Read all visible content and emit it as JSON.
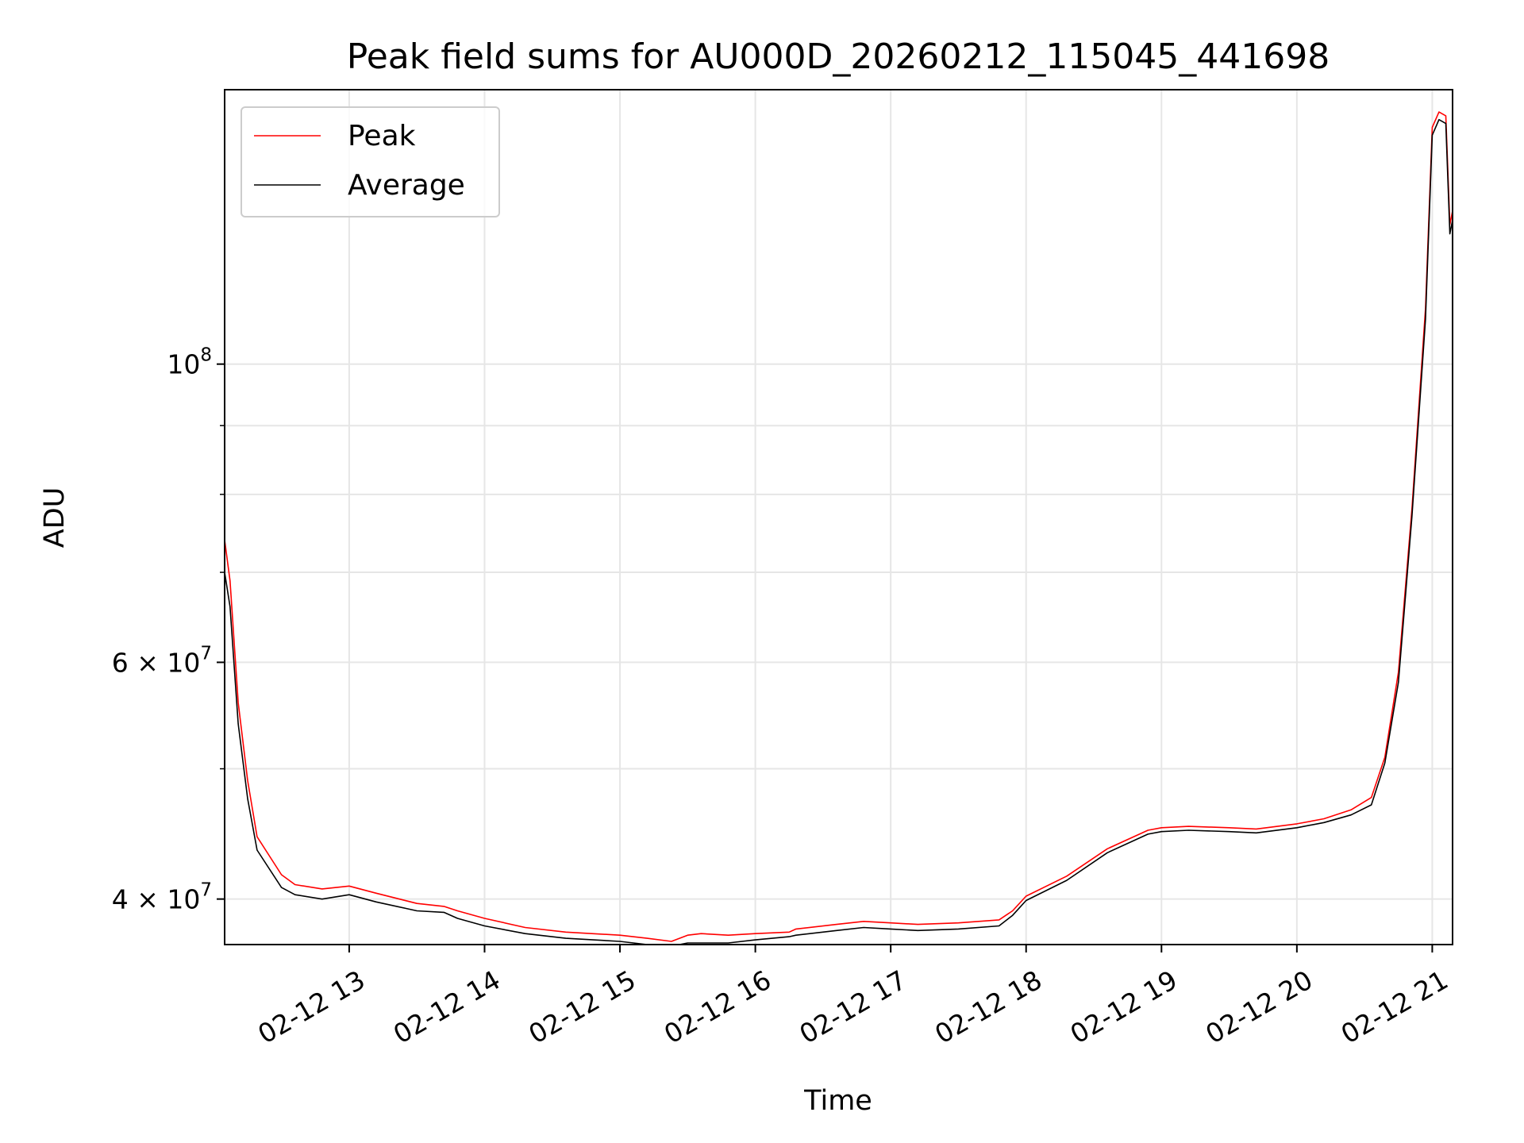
{
  "chart_data": {
    "type": "line",
    "title": "Peak field sums for AU000D_20260212_115045_441698",
    "xlabel": "Time",
    "ylabel": "ADU",
    "y_scale": "log",
    "x_unit": "hours (Feb 12)",
    "xlim": [
      12.08,
      21.15
    ],
    "ylim": [
      37000000,
      160000000
    ],
    "x_ticks": [
      {
        "value": 13,
        "label": "02-12 13"
      },
      {
        "value": 14,
        "label": "02-12 14"
      },
      {
        "value": 15,
        "label": "02-12 15"
      },
      {
        "value": 16,
        "label": "02-12 16"
      },
      {
        "value": 17,
        "label": "02-12 17"
      },
      {
        "value": 18,
        "label": "02-12 18"
      },
      {
        "value": 19,
        "label": "02-12 19"
      },
      {
        "value": 20,
        "label": "02-12 20"
      },
      {
        "value": 21,
        "label": "02-12 21"
      }
    ],
    "y_ticks": [
      {
        "value": 40000000,
        "mantissa": "4",
        "exponent": "7"
      },
      {
        "value": 60000000,
        "mantissa": "6",
        "exponent": "7"
      },
      {
        "value": 100000000,
        "base": "10",
        "exponent": "8"
      }
    ],
    "y_minor_ticks": [
      50000000,
      70000000,
      80000000,
      90000000
    ],
    "grid": true,
    "legend_position": "top-left",
    "series": [
      {
        "name": "Peak",
        "color": "#ff0000",
        "x": [
          12.08,
          12.12,
          12.18,
          12.25,
          12.32,
          12.5,
          12.6,
          12.8,
          13.0,
          13.2,
          13.5,
          13.7,
          13.8,
          14.0,
          14.3,
          14.6,
          15.0,
          15.2,
          15.38,
          15.5,
          15.6,
          15.8,
          16.0,
          16.25,
          16.3,
          16.6,
          16.8,
          17.0,
          17.2,
          17.5,
          17.8,
          17.9,
          18.0,
          18.3,
          18.6,
          18.9,
          19.0,
          19.2,
          19.5,
          19.7,
          20.0,
          20.2,
          20.4,
          20.55,
          20.65,
          20.75,
          20.85,
          20.95,
          21.0,
          21.05,
          21.1,
          21.13,
          21.15
        ],
        "values": [
          74000000,
          69000000,
          56000000,
          49000000,
          44500000,
          41700000,
          41000000,
          40700000,
          40900000,
          40400000,
          39700000,
          39500000,
          39200000,
          38700000,
          38100000,
          37800000,
          37600000,
          37400000,
          37200000,
          37600000,
          37700000,
          37600000,
          37700000,
          37800000,
          38000000,
          38300000,
          38500000,
          38400000,
          38300000,
          38400000,
          38600000,
          39200000,
          40200000,
          41600000,
          43600000,
          45000000,
          45200000,
          45300000,
          45200000,
          45100000,
          45500000,
          45900000,
          46600000,
          47600000,
          51000000,
          59000000,
          78000000,
          110000000,
          150000000,
          154000000,
          153000000,
          127000000,
          130000000
        ]
      },
      {
        "name": "Average",
        "color": "#000000",
        "x": [
          12.08,
          12.12,
          12.18,
          12.25,
          12.32,
          12.5,
          12.6,
          12.8,
          13.0,
          13.2,
          13.5,
          13.7,
          13.8,
          14.0,
          14.3,
          14.6,
          15.0,
          15.2,
          15.38,
          15.5,
          15.6,
          15.8,
          16.0,
          16.25,
          16.3,
          16.6,
          16.8,
          17.0,
          17.2,
          17.5,
          17.8,
          17.9,
          18.0,
          18.3,
          18.6,
          18.9,
          19.0,
          19.2,
          19.5,
          19.7,
          20.0,
          20.2,
          20.4,
          20.55,
          20.65,
          20.75,
          20.85,
          20.95,
          21.0,
          21.05,
          21.1,
          21.13,
          21.15
        ],
        "values": [
          70000000,
          66000000,
          54000000,
          47500000,
          43500000,
          40800000,
          40300000,
          40000000,
          40300000,
          39800000,
          39200000,
          39100000,
          38700000,
          38200000,
          37700000,
          37400000,
          37200000,
          37000000,
          36900000,
          37100000,
          37100000,
          37100000,
          37300000,
          37500000,
          37600000,
          37900000,
          38100000,
          38000000,
          37900000,
          38000000,
          38200000,
          38900000,
          39900000,
          41300000,
          43300000,
          44700000,
          44900000,
          45000000,
          44900000,
          44800000,
          45200000,
          45600000,
          46200000,
          47000000,
          50500000,
          58000000,
          77000000,
          108000000,
          148000000,
          152000000,
          151000000,
          125000000,
          128000000
        ]
      }
    ]
  }
}
